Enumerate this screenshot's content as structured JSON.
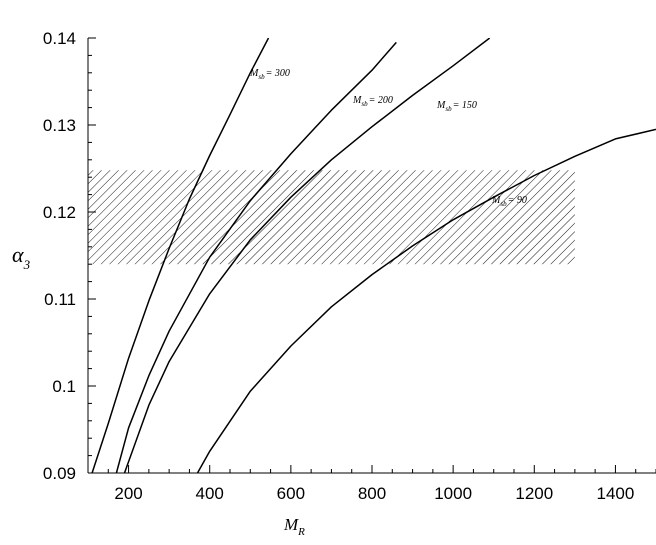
{
  "chart_data": {
    "type": "line",
    "xlabel": {
      "main": "M",
      "sub": "R"
    },
    "ylabel": {
      "main": "α",
      "sub": "3"
    },
    "xlim": [
      100,
      1500
    ],
    "ylim": [
      0.09,
      0.14
    ],
    "x_ticks": [
      {
        "value": 200,
        "label": "200"
      },
      {
        "value": 400,
        "label": "400"
      },
      {
        "value": 600,
        "label": "600"
      },
      {
        "value": 800,
        "label": "800"
      },
      {
        "value": 1000,
        "label": "1000"
      },
      {
        "value": 1200,
        "label": "1200"
      },
      {
        "value": 1400,
        "label": "1400"
      }
    ],
    "y_ticks": [
      {
        "value": 0.09,
        "label": "0.09"
      },
      {
        "value": 0.1,
        "label": "0.1"
      },
      {
        "value": 0.11,
        "label": "0.11"
      },
      {
        "value": 0.12,
        "label": "0.12"
      },
      {
        "value": 0.13,
        "label": "0.13"
      },
      {
        "value": 0.14,
        "label": "0.14"
      }
    ],
    "band": {
      "x": [
        100,
        1300
      ],
      "y": [
        0.114,
        0.1248
      ],
      "pattern": "diagonal-hatch"
    },
    "series": [
      {
        "label_main": "M",
        "label_sub": "sb",
        "label_value": "= 300",
        "x": [
          110,
          150,
          200,
          250,
          300,
          350,
          400,
          450,
          500,
          545
        ],
        "y": [
          0.09,
          0.0957,
          0.1032,
          0.1098,
          0.1158,
          0.1215,
          0.1265,
          0.1312,
          0.136,
          0.14
        ]
      },
      {
        "label_main": "M",
        "label_sub": "sb",
        "label_value": "= 200",
        "x": [
          170,
          200,
          250,
          300,
          400,
          500,
          600,
          700,
          800,
          860
        ],
        "y": [
          0.09,
          0.0952,
          0.1012,
          0.1063,
          0.1148,
          0.1213,
          0.1267,
          0.1317,
          0.1363,
          0.1395
        ]
      },
      {
        "label_main": "M",
        "label_sub": "sb",
        "label_value": "= 150",
        "x": [
          190,
          250,
          300,
          400,
          500,
          600,
          700,
          800,
          900,
          1000,
          1090
        ],
        "y": [
          0.09,
          0.0978,
          0.1028,
          0.1106,
          0.1168,
          0.1217,
          0.126,
          0.1298,
          0.1334,
          0.1368,
          0.14
        ]
      },
      {
        "label_main": "M",
        "label_sub": "sb",
        "label_value": "= 90",
        "x": [
          370,
          400,
          500,
          600,
          700,
          800,
          900,
          1000,
          1100,
          1200,
          1300,
          1400,
          1500
        ],
        "y": [
          0.09,
          0.0925,
          0.0994,
          0.1046,
          0.1091,
          0.1128,
          0.1161,
          0.1191,
          0.1217,
          0.1242,
          0.1264,
          0.1284,
          0.1295
        ]
      }
    ]
  }
}
